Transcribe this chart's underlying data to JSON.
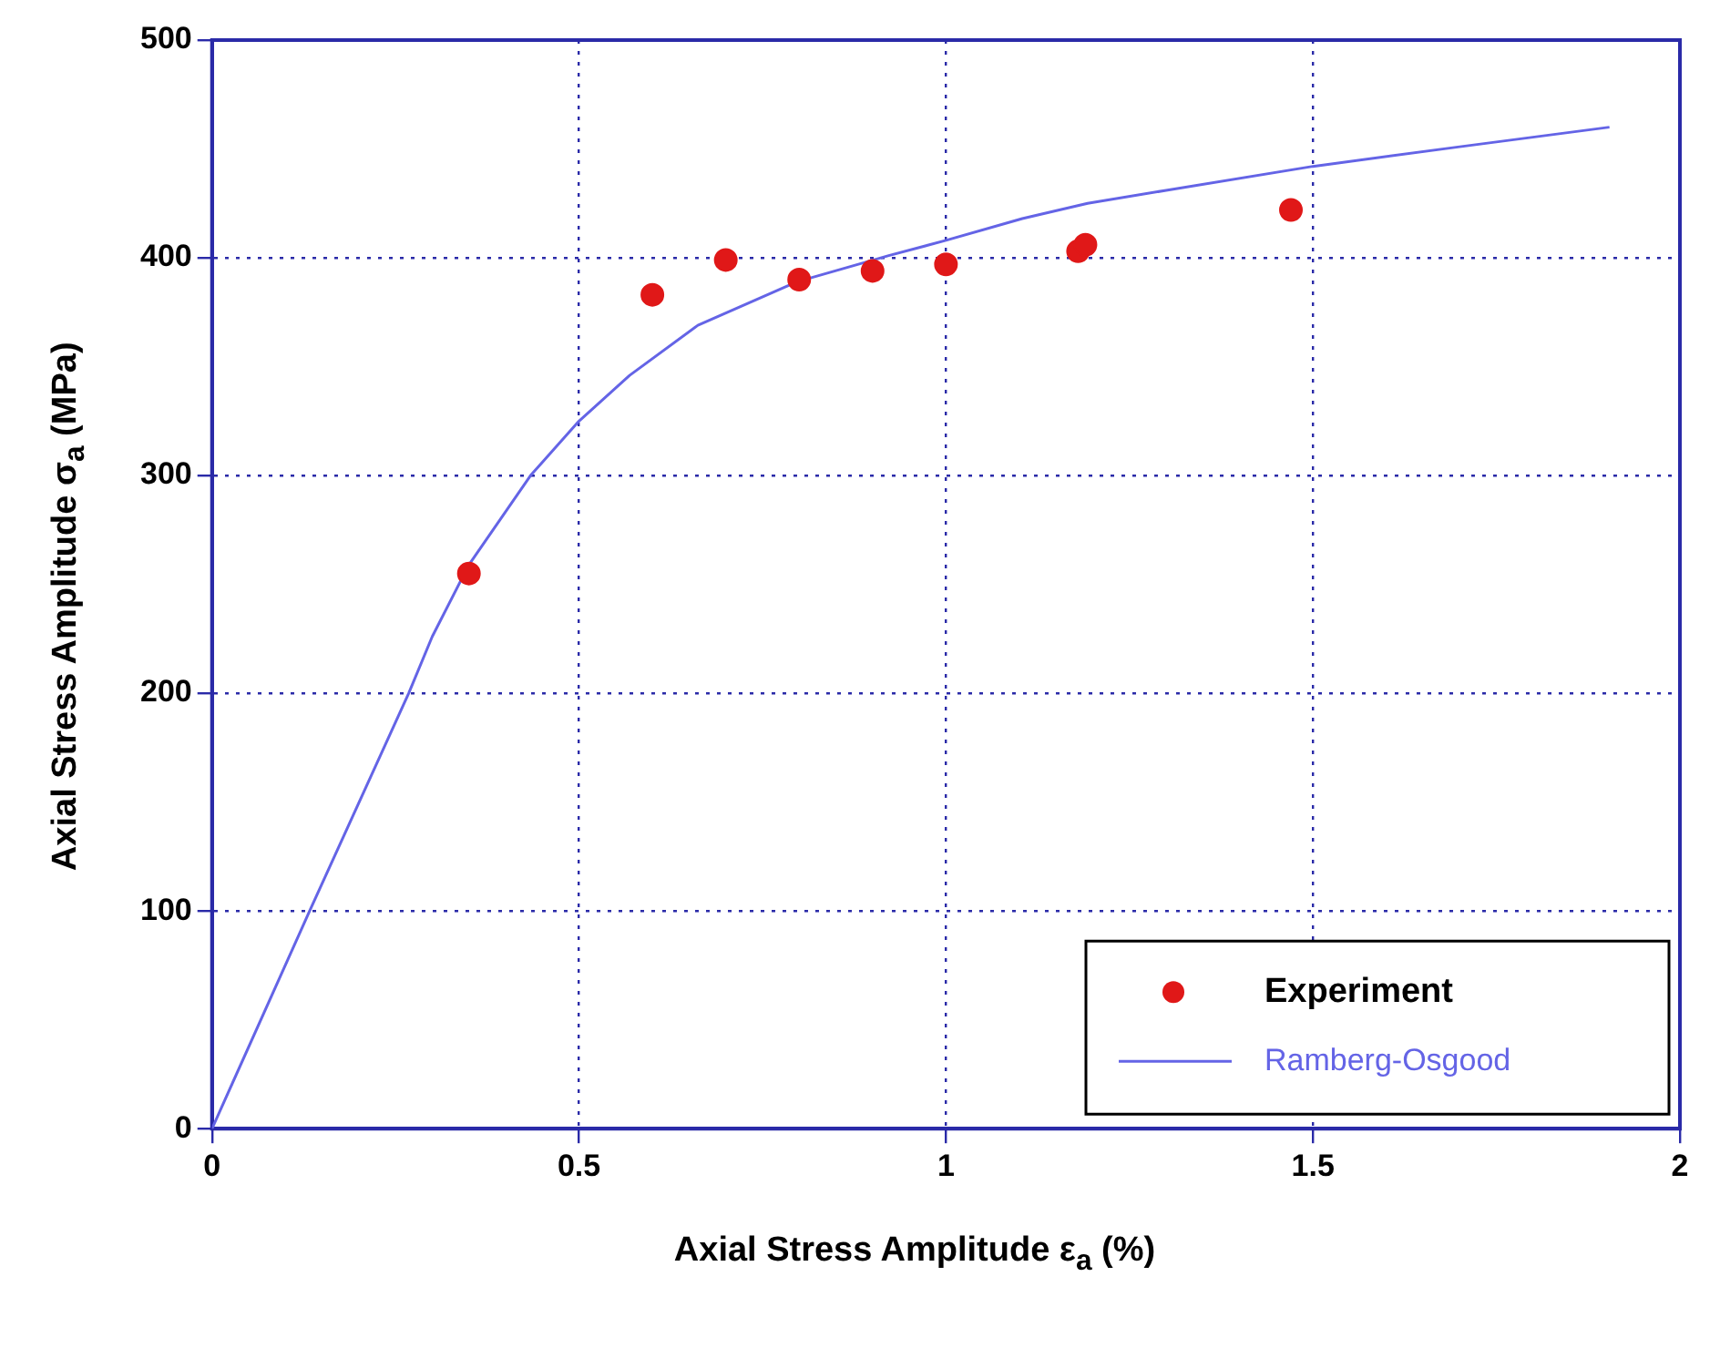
{
  "chart_data": {
    "type": "scatter",
    "xlabel": "Axial Stress Amplitude  ε$_{a}$ (%)",
    "ylabel": "Axial Stress Amplitude  σ$_{a}$ (MPa)",
    "xlim": [
      0,
      2
    ],
    "xticks": [
      0,
      0.5,
      1,
      1.5,
      2
    ],
    "ylim": [
      0,
      500
    ],
    "yticks": [
      0,
      100,
      200,
      300,
      400,
      500
    ],
    "grid": true,
    "legend": "bottom right",
    "series": [
      {
        "name": "Experiment",
        "marker": "circle",
        "color": "#e01818",
        "x": [
          0.35,
          0.6,
          0.7,
          0.8,
          0.9,
          1.0,
          1.18,
          1.19,
          1.47
        ],
        "values": [
          255,
          383,
          399,
          390,
          394,
          397,
          403,
          406,
          422
        ]
      },
      {
        "name": "Ramberg-Osgood",
        "type": "line",
        "line_style": "solid",
        "marker": "none",
        "color": "#6464e6",
        "x": [
          0,
          0.133,
          0.268,
          0.3,
          0.35,
          0.434,
          0.5,
          0.569,
          0.662,
          0.797,
          0.922,
          1.0,
          1.104,
          1.193,
          1.3,
          1.5,
          1.7,
          1.904
        ],
        "values": [
          0,
          100,
          200,
          226,
          259,
          300,
          325,
          346,
          369,
          389,
          401,
          408,
          418,
          425,
          431,
          442,
          451,
          460
        ]
      }
    ]
  }
}
